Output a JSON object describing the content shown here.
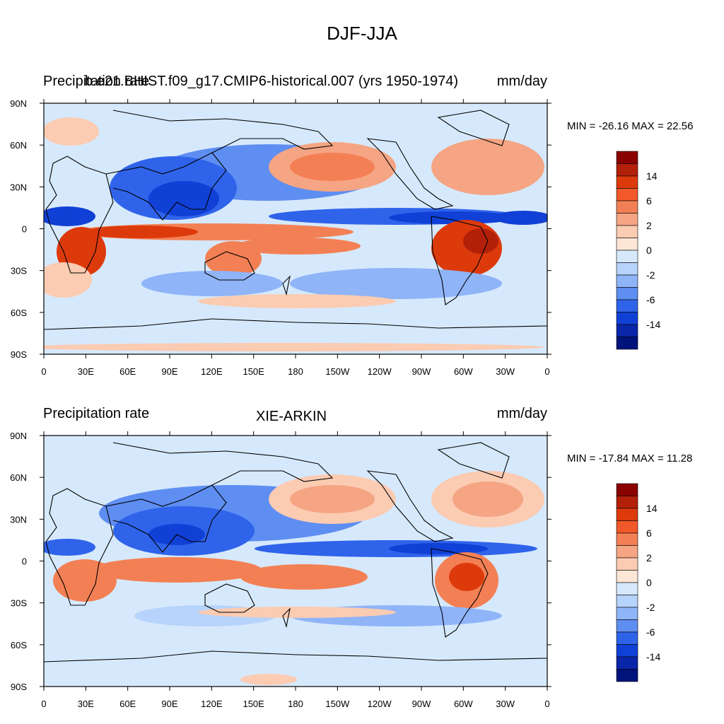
{
  "figure": {
    "title": "DJF-JJA"
  },
  "panels": [
    {
      "left_label": "Precipitation rate",
      "center_label": "b.e21.BHIST.f09_g17.CMIP6-historical.007 (yrs 1950-1974)",
      "right_label": "mm/day",
      "minmax": "MIN = -26.16 MAX =  22.56"
    },
    {
      "left_label": "Precipitation rate",
      "center_label": "XIE-ARKIN",
      "right_label": "mm/day",
      "minmax": "MIN = -17.84 MAX =  11.28"
    }
  ],
  "axes": {
    "y_ticks": [
      "90N",
      "60N",
      "30N",
      "0",
      "30S",
      "60S",
      "90S"
    ],
    "x_ticks": [
      "0",
      "30E",
      "60E",
      "90E",
      "120E",
      "150E",
      "180",
      "150W",
      "120W",
      "90W",
      "60W",
      "30W",
      "0"
    ]
  },
  "colorbar": {
    "labels": [
      "14",
      "6",
      "2",
      "0",
      "-2",
      "-6",
      "-14"
    ],
    "colors": [
      "#8b0000",
      "#b3200a",
      "#dd3a0c",
      "#f2592a",
      "#f38054",
      "#f5a583",
      "#fbcbb2",
      "#fde6d6",
      "#d6e9fc",
      "#b6d3fb",
      "#8fb4f8",
      "#5e8ef2",
      "#2f63ea",
      "#1140d6",
      "#0a26a8",
      "#00137a"
    ]
  },
  "colors": {
    "background_field": "#d6e9fc",
    "coast": "#000000"
  }
}
